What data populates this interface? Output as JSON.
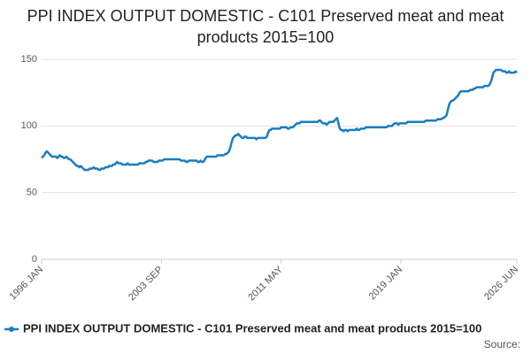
{
  "chart_data": {
    "type": "line",
    "title": "PPI INDEX OUTPUT DOMESTIC - C101 Preserved meat and meat products 2015=100",
    "source": "Source:",
    "categories": [
      "1996 JAN",
      null,
      null,
      null,
      null,
      null,
      null,
      null,
      null,
      null,
      null,
      null,
      null,
      null,
      null,
      null,
      null,
      null,
      null,
      null,
      null,
      null,
      null,
      null,
      null,
      null,
      null,
      null,
      null,
      null,
      null,
      null,
      null,
      null,
      null,
      null,
      null,
      null,
      null,
      null,
      null,
      null,
      null,
      null,
      null,
      null,
      null,
      null,
      null,
      null,
      null,
      null,
      null,
      null,
      null,
      null,
      null,
      null,
      null,
      null,
      null,
      null,
      null,
      null,
      null,
      null,
      null,
      null,
      null,
      null,
      null,
      null,
      null,
      null,
      null,
      null,
      null,
      null,
      null,
      null,
      null,
      null,
      null,
      null,
      null,
      null,
      null,
      null,
      null,
      null,
      null,
      null,
      "2003 SEP",
      null,
      null,
      null,
      null,
      null,
      null,
      null,
      null,
      null,
      null,
      null,
      null,
      null,
      null,
      null,
      null,
      null,
      null,
      null,
      null,
      null,
      null,
      null,
      null,
      null,
      null,
      null,
      null,
      null,
      null,
      null,
      null,
      null,
      null,
      null,
      null,
      null,
      null,
      null,
      null,
      null,
      null,
      null,
      null,
      null,
      null,
      null,
      null,
      null,
      null,
      null,
      null,
      null,
      null,
      null,
      null,
      null,
      null,
      null,
      null,
      null,
      null,
      null,
      null,
      null,
      null,
      null,
      null,
      null,
      null,
      null,
      null,
      null,
      null,
      null,
      null,
      null,
      null,
      null,
      null,
      null,
      null,
      null,
      null,
      null,
      null,
      null,
      null,
      null,
      null,
      null,
      "2011 MAY",
      null,
      null,
      null,
      null,
      null,
      null,
      null,
      null,
      null,
      null,
      null,
      null,
      null,
      null,
      null,
      null,
      null,
      null,
      null,
      null,
      null,
      null,
      null,
      null,
      null,
      null,
      null,
      null,
      null,
      null,
      null,
      null,
      null,
      null,
      null,
      null,
      null,
      null,
      null,
      null,
      null,
      null,
      null,
      null,
      null,
      null,
      null,
      null,
      null,
      null,
      null,
      null,
      null,
      null,
      null,
      null,
      null,
      null,
      null,
      null,
      null,
      null,
      null,
      null,
      null,
      null,
      null,
      null,
      null,
      null,
      null,
      null,
      null,
      null,
      null,
      null,
      null,
      null,
      null,
      null,
      null,
      null,
      null,
      null,
      null,
      null,
      null,
      null,
      null,
      null,
      null,
      "2019 JAN",
      null,
      null,
      null,
      null,
      null,
      null,
      null,
      null,
      null,
      null,
      null,
      null,
      null,
      null,
      null,
      null,
      null,
      null,
      null,
      null,
      null,
      null,
      null,
      null,
      null,
      null,
      null,
      null,
      null,
      null,
      null,
      null,
      null,
      null,
      null,
      null,
      null,
      null,
      null,
      null,
      null,
      null,
      null,
      null,
      null,
      null,
      null,
      null,
      null,
      null,
      null,
      null,
      null,
      null,
      null,
      null,
      null,
      null,
      null,
      null,
      null,
      null,
      null,
      null,
      null,
      null,
      null,
      null,
      null,
      null,
      null,
      null,
      null,
      null,
      null,
      null,
      null,
      null,
      null,
      null,
      null,
      null,
      null,
      null,
      null,
      null,
      null,
      null,
      "2026 JUN"
    ],
    "series": [
      {
        "name": "PPI INDEX OUTPUT DOMESTIC - C101 Preserved meat and meat products 2015=100",
        "color": "#1a7dc0",
        "values": [
          76,
          77,
          78,
          80,
          81,
          80,
          79,
          78,
          77,
          77,
          77,
          77,
          76,
          77,
          78,
          77,
          77,
          76,
          76,
          77,
          76,
          75,
          75,
          74,
          73,
          72,
          71,
          70,
          70,
          69,
          70,
          69,
          68,
          67,
          67,
          67,
          67,
          68,
          68,
          68,
          69,
          68,
          68,
          68,
          67,
          67,
          68,
          68,
          68,
          69,
          69,
          69,
          70,
          70,
          70,
          71,
          71,
          72,
          73,
          72,
          72,
          72,
          71,
          71,
          71,
          71,
          72,
          71,
          71,
          71,
          71,
          71,
          71,
          71,
          71,
          72,
          72,
          72,
          72,
          72,
          73,
          73,
          74,
          74,
          74,
          74,
          73,
          73,
          73,
          73,
          74,
          74,
          74,
          74,
          75,
          75,
          75,
          75,
          75,
          75,
          75,
          75,
          75,
          75,
          75,
          75,
          75,
          74,
          74,
          74,
          74,
          73,
          73,
          74,
          74,
          74,
          74,
          74,
          74,
          74,
          73,
          73,
          74,
          73,
          73,
          74,
          76,
          77,
          77,
          77,
          77,
          77,
          77,
          77,
          77,
          78,
          78,
          78,
          78,
          78,
          78,
          79,
          79,
          80,
          81,
          84,
          88,
          91,
          92,
          93,
          93,
          94,
          93,
          92,
          91,
          91,
          92,
          92,
          91,
          91,
          91,
          91,
          91,
          91,
          91,
          90,
          91,
          91,
          91,
          91,
          91,
          91,
          91,
          92,
          95,
          97,
          97,
          98,
          98,
          98,
          98,
          98,
          98,
          98,
          99,
          99,
          99,
          99,
          99,
          98,
          98,
          99,
          99,
          99,
          100,
          101,
          102,
          102,
          102,
          103,
          103,
          103,
          103,
          103,
          103,
          103,
          103,
          103,
          103,
          103,
          103,
          103,
          103,
          104,
          104,
          103,
          102,
          102,
          102,
          101,
          102,
          103,
          103,
          103,
          103,
          104,
          105,
          106,
          102,
          98,
          97,
          97,
          96,
          97,
          97,
          96,
          97,
          97,
          97,
          97,
          97,
          97,
          98,
          97,
          97,
          98,
          98,
          98,
          98,
          99,
          99,
          99,
          99,
          99,
          99,
          99,
          99,
          99,
          99,
          99,
          99,
          99,
          99,
          99,
          99,
          99,
          100,
          100,
          100,
          100,
          101,
          102,
          102,
          102,
          101,
          102,
          102,
          102,
          102,
          102,
          102,
          103,
          103,
          103,
          103,
          103,
          103,
          103,
          103,
          103,
          103,
          103,
          103,
          103,
          103,
          104,
          104,
          104,
          104,
          104,
          104,
          104,
          104,
          104,
          105,
          105,
          105,
          105,
          106,
          106,
          107,
          108,
          112,
          116,
          118,
          119,
          119,
          120,
          121,
          122,
          123,
          125,
          126,
          126,
          126,
          126,
          126,
          126,
          126,
          127,
          127,
          127,
          128,
          128,
          129,
          129,
          129,
          129,
          129,
          129,
          130,
          130,
          130,
          130,
          131,
          133,
          136,
          140,
          141,
          142,
          142,
          142,
          142,
          142,
          141,
          141,
          141,
          140,
          140,
          141,
          140,
          140,
          140,
          140,
          141,
          140
        ]
      }
    ],
    "ylim": [
      0,
      150
    ],
    "yticks": [
      0,
      50,
      100,
      150
    ],
    "grid": true
  }
}
